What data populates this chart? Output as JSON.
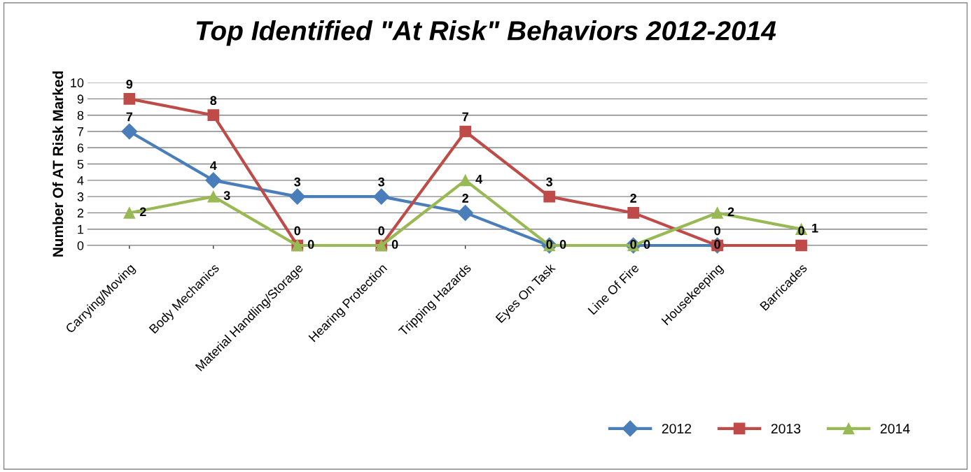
{
  "chart_data": {
    "type": "line",
    "title": "Top Identified \"At Risk\" Behaviors 2012-2014",
    "ylabel": "Number Of AT Risk Marked",
    "categories": [
      "Carrying/Moving",
      "Body Mechanics",
      "Material Handling/Storage",
      "Hearing Protection",
      "Tripping Hazards",
      "Eyes On Task",
      "Line Of Fire",
      "Housekeeping",
      "Barricades"
    ],
    "series": [
      {
        "name": "2012",
        "color": "#4a7ebb",
        "marker": "diamond",
        "values": [
          7,
          4,
          3,
          3,
          2,
          0,
          0,
          0,
          null
        ]
      },
      {
        "name": "2013",
        "color": "#be4b48",
        "marker": "square",
        "values": [
          9,
          8,
          0,
          0,
          7,
          3,
          2,
          0,
          0
        ]
      },
      {
        "name": "2014",
        "color": "#98b954",
        "marker": "triangle",
        "values": [
          2,
          3,
          0,
          0,
          4,
          0,
          0,
          2,
          1
        ]
      }
    ],
    "ylim": [
      0,
      10
    ],
    "yticks": [
      0,
      1,
      2,
      3,
      4,
      5,
      6,
      7,
      8,
      9,
      10
    ],
    "grid": "y",
    "legend": "bottom right",
    "data_labels": true,
    "line_style": "solid"
  }
}
